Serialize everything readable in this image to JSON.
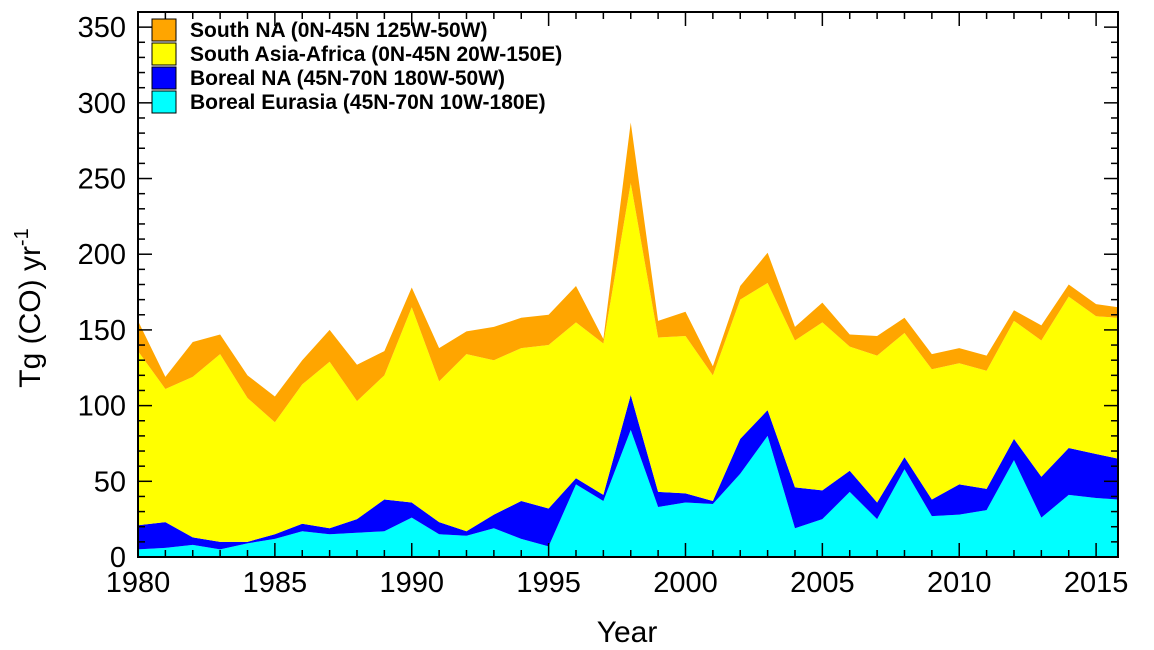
{
  "chart_data": {
    "type": "area",
    "stacked": true,
    "xlabel": "Year",
    "ylabel": {
      "main": "Tg (CO) yr",
      "superscript": "-1"
    },
    "xlim": [
      1980,
      2015.8
    ],
    "ylim": [
      0,
      360
    ],
    "xticks": [
      1980,
      1985,
      1990,
      1995,
      2000,
      2005,
      2010,
      2015
    ],
    "yticks": [
      0,
      50,
      100,
      150,
      200,
      250,
      300,
      350
    ],
    "legend_position": "top-left",
    "x": [
      1979.2,
      1980,
      1981,
      1982,
      1983,
      1984,
      1985,
      1986,
      1987,
      1988,
      1989,
      1990,
      1991,
      1992,
      1993,
      1994,
      1995,
      1996,
      1997,
      1998,
      1999,
      2000,
      2001,
      2002,
      2003,
      2004,
      2005,
      2006,
      2007,
      2008,
      2009,
      2010,
      2011,
      2012,
      2013,
      2014,
      2015,
      2015.8
    ],
    "series": [
      {
        "name": "Boreal Eurasia (45N-70N 10W-180E)",
        "color": "#00ffff",
        "values": [
          4,
          5,
          6,
          8,
          5,
          9,
          12,
          17,
          15,
          16,
          17,
          26,
          15,
          14,
          19,
          12,
          7,
          48,
          37,
          84,
          33,
          36,
          35,
          55,
          80,
          19,
          25,
          43,
          25,
          58,
          27,
          28,
          31,
          64,
          26,
          41,
          39,
          38
        ]
      },
      {
        "name": "Boreal NA (45N-70N 180W-50W)",
        "color": "#0000ff",
        "values": [
          16,
          16,
          17,
          5,
          5,
          1,
          3,
          5,
          4,
          9,
          21,
          10,
          8,
          3,
          9,
          25,
          25,
          4,
          4,
          23,
          10,
          6,
          2,
          23,
          17,
          27,
          19,
          14,
          11,
          8,
          11,
          20,
          14,
          14,
          27,
          31,
          29,
          27
        ]
      },
      {
        "name": "South Asia-Africa (0N-45N 20W-150E)",
        "color": "#ffff00",
        "values": [
          110,
          115,
          88,
          106,
          124,
          95,
          74,
          92,
          110,
          78,
          82,
          129,
          93,
          117,
          102,
          101,
          108,
          103,
          100,
          140,
          102,
          104,
          83,
          92,
          84,
          97,
          111,
          82,
          97,
          82,
          86,
          80,
          78,
          78,
          90,
          100,
          91,
          93
        ]
      },
      {
        "name": "South NA (0N-45N 125W-50W)",
        "color": "#ffa500",
        "values": [
          4,
          20,
          8,
          23,
          13,
          15,
          17,
          16,
          21,
          24,
          16,
          13,
          22,
          15,
          22,
          20,
          20,
          24,
          3,
          40,
          11,
          16,
          6,
          9,
          20,
          9,
          13,
          8,
          13,
          10,
          10,
          10,
          10,
          7,
          10,
          8,
          8,
          7
        ]
      }
    ]
  }
}
